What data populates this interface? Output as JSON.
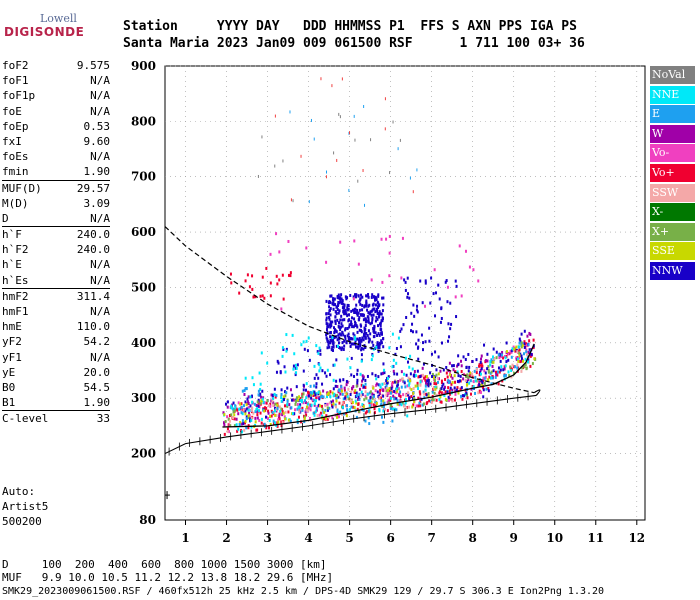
{
  "logo": {
    "line1": "Lowell",
    "line2": "DIGISONDE"
  },
  "header": {
    "row1": "Station     YYYY DAY   DDD HHMMSS P1  FFS S AXN PPS IGA PS",
    "row2": "Santa Maria 2023 Jan09 009 061500 RSF      1 711 100 03+ 36"
  },
  "params": [
    {
      "label": "foF2",
      "value": "9.575"
    },
    {
      "label": "foF1",
      "value": "N/A"
    },
    {
      "label": "foF1p",
      "value": "N/A"
    },
    {
      "label": "foE",
      "value": "N/A"
    },
    {
      "label": "foEp",
      "value": "0.53"
    },
    {
      "label": "fxI",
      "value": "9.60"
    },
    {
      "label": "foEs",
      "value": "N/A"
    },
    {
      "label": "fmin",
      "value": "1.90"
    },
    {
      "label": "MUF(D)",
      "value": "29.57",
      "sep": true
    },
    {
      "label": "M(D)",
      "value": "3.09"
    },
    {
      "label": "D",
      "value": "N/A"
    },
    {
      "label": "h`F",
      "value": "240.0",
      "sep": true
    },
    {
      "label": "h`F2",
      "value": "240.0"
    },
    {
      "label": "h`E",
      "value": "N/A"
    },
    {
      "label": "h`Es",
      "value": "N/A"
    },
    {
      "label": "hmF2",
      "value": "311.4",
      "sep": true
    },
    {
      "label": "hmF1",
      "value": "N/A"
    },
    {
      "label": "hmE",
      "value": "110.0"
    },
    {
      "label": "yF2",
      "value": "54.2"
    },
    {
      "label": "yF1",
      "value": "N/A"
    },
    {
      "label": "yE",
      "value": "20.0"
    },
    {
      "label": "B0",
      "value": "54.5"
    },
    {
      "label": "B1",
      "value": "1.90"
    },
    {
      "label": "C-level",
      "value": "33",
      "sep": true
    }
  ],
  "auto": {
    "line1": "Auto:",
    "line2": "Artist5",
    "line3": "500200"
  },
  "legend": [
    {
      "label": "NoVal",
      "color": "#808080"
    },
    {
      "label": "NNE",
      "color": "#00e8f8"
    },
    {
      "label": "E",
      "color": "#1ea0f0"
    },
    {
      "label": "W",
      "color": "#a000a8"
    },
    {
      "label": "Vo-",
      "color": "#f040c0"
    },
    {
      "label": "Vo+",
      "color": "#f00030"
    },
    {
      "label": "SSW",
      "color": "#f4a8a8"
    },
    {
      "label": "X-",
      "color": "#007800"
    },
    {
      "label": "X+",
      "color": "#78b048"
    },
    {
      "label": "SSE",
      "color": "#c8d800"
    },
    {
      "label": "NNW",
      "color": "#1800c8"
    }
  ],
  "footer": {
    "d_row": "D     100  200  400  600  800 1000 1500 3000 [km]",
    "muf_row": "MUF   9.9 10.0 10.5 11.2 12.2 13.8 18.2 29.6 [MHz]",
    "file_row": "SMK29_2023009061500.RSF / 460fx512h 25 kHz 2.5 km / DPS-4D SMK29 129 / 29.7 S 306.3 E Ion2Png 1.3.20"
  },
  "chart_data": {
    "type": "scatter",
    "xlim": [
      0.5,
      12.2
    ],
    "ylim": [
      80,
      900
    ],
    "xticks": [
      "1",
      "2",
      "3",
      "4",
      "5",
      "6",
      "7",
      "8",
      "9",
      "10",
      "11",
      "12"
    ],
    "yticks": [
      "80",
      "200",
      "300",
      "400",
      "500",
      "600",
      "700",
      "800",
      "900"
    ],
    "grid": "dotted",
    "legend_position": "right",
    "o_trace_virtual": [
      [
        1.9,
        248
      ],
      [
        3.0,
        250
      ],
      [
        4.0,
        260
      ],
      [
        5.0,
        275
      ],
      [
        6.0,
        290
      ],
      [
        7.0,
        302
      ],
      [
        8.0,
        318
      ],
      [
        8.5,
        325
      ],
      [
        9.0,
        342
      ],
      [
        9.3,
        365
      ],
      [
        9.5,
        398
      ]
    ],
    "density_profile": [
      [
        0.5,
        610
      ],
      [
        1.0,
        575
      ],
      [
        2.0,
        520
      ],
      [
        3.0,
        470
      ],
      [
        4.0,
        430
      ],
      [
        5.0,
        402
      ],
      [
        6.0,
        380
      ],
      [
        7.0,
        360
      ],
      [
        8.0,
        337
      ],
      [
        9.0,
        318
      ],
      [
        9.5,
        310
      ]
    ],
    "profile_bottom": [
      [
        0.5,
        200
      ],
      [
        1.0,
        218
      ],
      [
        2.0,
        230
      ],
      [
        3.0,
        240
      ],
      [
        4.0,
        250
      ],
      [
        5.0,
        262
      ],
      [
        6.0,
        272
      ],
      [
        7.0,
        280
      ],
      [
        8.0,
        290
      ],
      [
        9.0,
        300
      ],
      [
        9.55,
        305
      ]
    ],
    "scatter_regions": [
      {
        "series": "NNW",
        "x": [
          4.4,
          5.8
        ],
        "y": [
          390,
          490
        ]
      },
      {
        "series": "Vo+",
        "x": [
          1.9,
          9.5
        ],
        "y": [
          240,
          400
        ]
      },
      {
        "series": "NNE",
        "x": [
          2.4,
          6.6
        ],
        "y": [
          260,
          420
        ]
      },
      {
        "series": "E",
        "x": [
          2.2,
          6.4
        ],
        "y": [
          250,
          330
        ]
      }
    ]
  }
}
